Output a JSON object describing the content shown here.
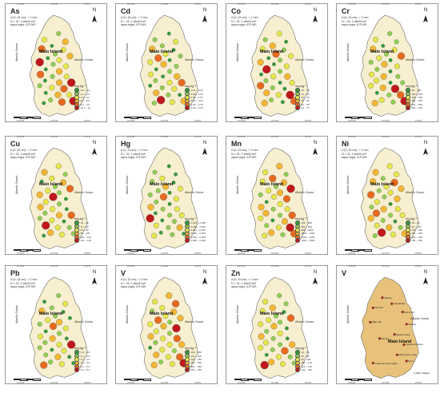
{
  "common": {
    "meta_lines": [
      "A (0–15 cm); < 2 mm",
      "N = 31; 1 site/8 km²",
      "aqua regia; ICP-MS"
    ],
    "island_label": "Maio Island",
    "ocean_label": "Atlantic Ocean",
    "units": "mg kg⁻¹",
    "north_label": "N",
    "top_ticks": [
      "23°20'W",
      "23°10'W",
      "23°0'W"
    ],
    "bottom_ticks": [
      "23°20'W",
      "23°10'W",
      "23°0'W"
    ]
  },
  "palette": [
    "#2e9e3a",
    "#8fd14f",
    "#e7e84a",
    "#f7b733",
    "#e86a1f",
    "#c0181a"
  ],
  "panels": [
    {
      "element": "As",
      "legend": [
        "0.5 – 2.0",
        "2.1 – 4.0",
        "4.1 – 6.0",
        "6.1 – 8.0",
        "8.1 – 10",
        "10.1 – 14"
      ]
    },
    {
      "element": "Cd",
      "legend": [
        "0.01 – 0.05",
        "0.06 – 0.10",
        "0.11 – 0.15",
        "0.16 – 0.20",
        "0.21 – 0.25",
        "0.26 – 0.40"
      ]
    },
    {
      "element": "Co",
      "legend": [
        "10 – 20",
        "21 – 30",
        "31 – 40",
        "41 – 50",
        "51 – 60",
        "61 – 75"
      ]
    },
    {
      "element": "Cr",
      "legend": [
        "50 – 100",
        "101 – 200",
        "201 – 300",
        "301 – 400",
        "401 – 500",
        "501 – 700"
      ]
    },
    {
      "element": "Cu",
      "legend": [
        "20 – 40",
        "41 – 60",
        "61 – 80",
        "81 – 100",
        "101 – 120",
        "121 – 160"
      ]
    },
    {
      "element": "Hg",
      "legend": [
        "0.001 – 0.005",
        "0.006 – 0.010",
        "0.011 – 0.015",
        "0.016 – 0.020",
        "0.021 – 0.025",
        "0.026 – 0.040"
      ]
    },
    {
      "element": "Mn",
      "legend": [
        "400 – 600",
        "601 – 800",
        "801 – 1000",
        "1001 – 1200",
        "1201 – 1400",
        "1401 – 1800"
      ]
    },
    {
      "element": "Ni",
      "legend": [
        "20 – 60",
        "61 – 100",
        "101 – 150",
        "151 – 200",
        "201 – 250",
        "251 – 350"
      ]
    },
    {
      "element": "Pb",
      "legend": [
        "1.0 – 2.0",
        "2.1 – 3.0",
        "3.1 – 4.0",
        "4.1 – 5.0",
        "5.1 – 6.0",
        "6.1 – 8.0"
      ]
    },
    {
      "element": "V",
      "legend": [
        "100 – 150",
        "151 – 200",
        "201 – 250",
        "251 – 300",
        "301 – 350",
        "351 – 450"
      ]
    },
    {
      "element": "Zn",
      "legend": [
        "40 – 60",
        "61 – 80",
        "81 – 100",
        "101 – 120",
        "121 – 140",
        "141 – 180"
      ]
    },
    {
      "element": "V",
      "is_locator": true,
      "settlements": [
        "Calheta",
        "Morrinho",
        "Cascabulho",
        "Pedro Vaz",
        "Alcatraz",
        "Pilão Cão",
        "Figueira Seca",
        "Barreiro",
        "Figueira da Horta",
        "Ribeira Dom João",
        "Cidade do Porto Inglês",
        "Morro"
      ],
      "legend_label": "Main villages"
    }
  ],
  "points": [
    [
      0.55,
      0.18
    ],
    [
      0.34,
      0.24
    ],
    [
      0.65,
      0.26
    ],
    [
      0.45,
      0.3
    ],
    [
      0.3,
      0.33
    ],
    [
      0.62,
      0.34
    ],
    [
      0.5,
      0.38
    ],
    [
      0.39,
      0.42
    ],
    [
      0.72,
      0.4
    ],
    [
      0.56,
      0.44
    ],
    [
      0.27,
      0.46
    ],
    [
      0.47,
      0.48
    ],
    [
      0.66,
      0.5
    ],
    [
      0.36,
      0.53
    ],
    [
      0.56,
      0.55
    ],
    [
      0.28,
      0.58
    ],
    [
      0.46,
      0.6
    ],
    [
      0.67,
      0.6
    ],
    [
      0.35,
      0.64
    ],
    [
      0.56,
      0.66
    ],
    [
      0.74,
      0.66
    ],
    [
      0.27,
      0.69
    ],
    [
      0.45,
      0.71
    ],
    [
      0.63,
      0.72
    ],
    [
      0.36,
      0.76
    ],
    [
      0.54,
      0.78
    ],
    [
      0.71,
      0.78
    ],
    [
      0.43,
      0.83
    ],
    [
      0.6,
      0.85
    ],
    [
      0.33,
      0.86
    ],
    [
      0.77,
      0.84
    ]
  ],
  "classes": [
    [
      1,
      2,
      3,
      0,
      4,
      2,
      1,
      0,
      3,
      2,
      5,
      1,
      2,
      0,
      3,
      4,
      1,
      2,
      0,
      3,
      5,
      1,
      2,
      4,
      0,
      3,
      2,
      1,
      4,
      0,
      5
    ],
    [
      0,
      1,
      2,
      1,
      3,
      0,
      2,
      4,
      1,
      0,
      2,
      3,
      1,
      0,
      1,
      2,
      0,
      3,
      1,
      2,
      4,
      0,
      1,
      2,
      3,
      1,
      0,
      5,
      2,
      1,
      3
    ],
    [
      2,
      1,
      0,
      3,
      2,
      1,
      4,
      0,
      2,
      1,
      3,
      0,
      2,
      5,
      1,
      0,
      2,
      3,
      1,
      0,
      2,
      4,
      1,
      0,
      3,
      2,
      5,
      1,
      0,
      3,
      4
    ],
    [
      1,
      2,
      1,
      0,
      3,
      2,
      1,
      2,
      4,
      0,
      1,
      3,
      2,
      1,
      0,
      2,
      3,
      1,
      2,
      0,
      1,
      2,
      3,
      5,
      0,
      1,
      4,
      2,
      1,
      3,
      5
    ],
    [
      2,
      3,
      1,
      2,
      0,
      3,
      1,
      2,
      4,
      1,
      3,
      5,
      0,
      2,
      1,
      3,
      2,
      0,
      1,
      3,
      4,
      1,
      2,
      0,
      5,
      2,
      1,
      3,
      2,
      0,
      1
    ],
    [
      0,
      1,
      0,
      2,
      1,
      0,
      3,
      1,
      2,
      0,
      1,
      4,
      2,
      1,
      0,
      3,
      1,
      2,
      0,
      1,
      2,
      5,
      0,
      1,
      2,
      1,
      3,
      0,
      1,
      2,
      0
    ],
    [
      3,
      2,
      1,
      4,
      2,
      3,
      1,
      2,
      5,
      3,
      1,
      2,
      4,
      0,
      2,
      3,
      1,
      2,
      3,
      1,
      4,
      2,
      0,
      3,
      1,
      2,
      5,
      3,
      1,
      2,
      4
    ],
    [
      2,
      3,
      2,
      1,
      3,
      4,
      2,
      1,
      3,
      2,
      4,
      1,
      3,
      2,
      0,
      1,
      3,
      2,
      4,
      1,
      2,
      3,
      1,
      0,
      2,
      3,
      1,
      5,
      2,
      1,
      3
    ],
    [
      1,
      0,
      2,
      1,
      3,
      0,
      1,
      2,
      0,
      3,
      1,
      4,
      2,
      0,
      1,
      2,
      3,
      0,
      1,
      2,
      5,
      1,
      0,
      2,
      1,
      3,
      0,
      1,
      2,
      4,
      0
    ],
    [
      3,
      2,
      4,
      2,
      1,
      3,
      2,
      4,
      3,
      1,
      2,
      3,
      5,
      2,
      1,
      3,
      2,
      4,
      1,
      2,
      3,
      0,
      2,
      1,
      3,
      2,
      4,
      1,
      2,
      3,
      5
    ],
    [
      1,
      2,
      1,
      3,
      2,
      0,
      1,
      2,
      4,
      1,
      2,
      3,
      0,
      1,
      2,
      3,
      1,
      0,
      2,
      1,
      3,
      2,
      1,
      4,
      0,
      2,
      1,
      3,
      2,
      5,
      1
    ]
  ]
}
